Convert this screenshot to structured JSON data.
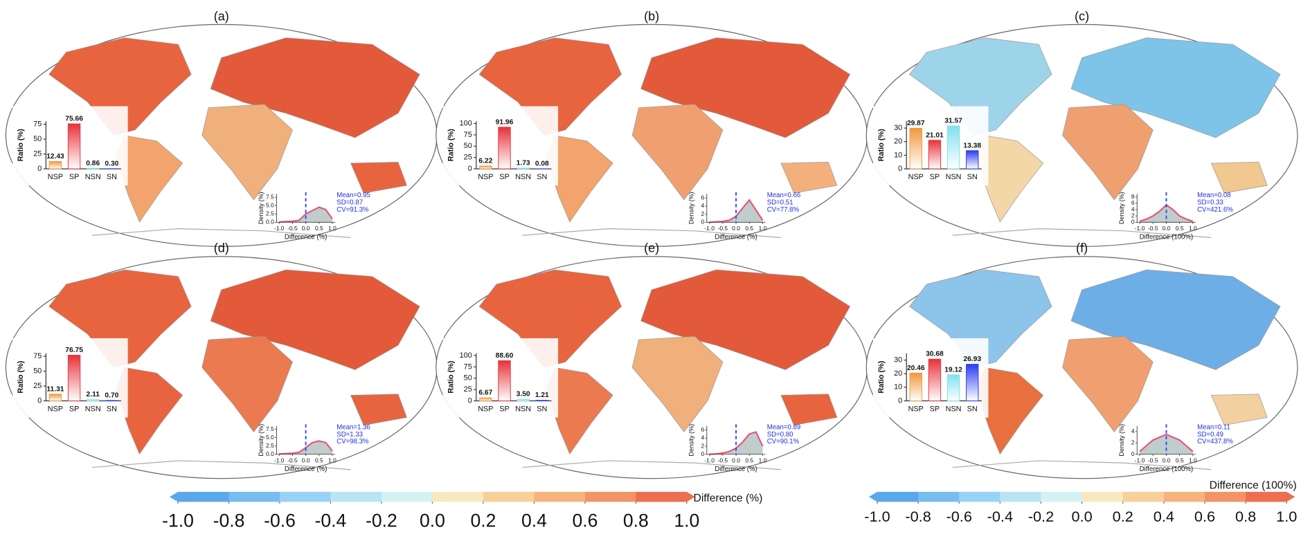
{
  "panels": [
    {
      "label": "(a)",
      "map_colors": [
        "#e8643f",
        "#f3a36c",
        "#e25a3a",
        "#f0b07c",
        "#e8643f"
      ],
      "bar": {
        "type": "bar",
        "ylabel": "Ratio (%)",
        "categories": [
          "NSP",
          "SP",
          "NSN",
          "SN"
        ],
        "values": [
          12.43,
          75.66,
          0.86,
          0.3
        ],
        "value_labels": [
          "12.43",
          "75.66",
          "0.86",
          "0.30"
        ],
        "colors": [
          "#f0993c",
          "#e8323a",
          "#7fe0f0",
          "#2a3cf0"
        ],
        "ylim": [
          0,
          80
        ],
        "yticks": [
          0,
          25,
          50,
          75
        ]
      },
      "density": {
        "type": "line",
        "xlabel": "Difference (%)",
        "ylabel": "Density (%)",
        "x": [
          -1,
          -0.75,
          -0.5,
          -0.25,
          0,
          0.25,
          0.5,
          0.75,
          1
        ],
        "values": [
          0.1,
          0.2,
          0.3,
          0.6,
          2.5,
          3.5,
          4.5,
          3.8,
          1.0
        ],
        "color": "#e8547a",
        "fill": "#b4c4c4",
        "vline": 0,
        "xlim": [
          -1.1,
          1.1
        ],
        "ylim": [
          0,
          8.5
        ],
        "xticks": [
          {
            "value": -1,
            "label": "-1.0"
          },
          -0.5,
          {
            "value": 0,
            "label": "0.0"
          },
          0.5,
          {
            "value": 1,
            "label": "1.0"
          }
        ],
        "yticks": [
          {
            "value": 0,
            "label": "0.0"
          },
          2.5,
          {
            "value": 5,
            "label": "5.0"
          },
          7.5
        ],
        "stats": [
          "Mean=0.95",
          "SD=0.87",
          "CV=91.3%"
        ]
      }
    },
    {
      "label": "(b)",
      "map_colors": [
        "#e8643f",
        "#f3a36c",
        "#e25a3a",
        "#f0a070",
        "#f3b07c"
      ],
      "bar": {
        "type": "bar",
        "ylabel": "Ratio (%)",
        "categories": [
          "NSP",
          "SP",
          "NSN",
          "SN"
        ],
        "values": [
          6.22,
          91.96,
          1.73,
          0.08
        ],
        "value_labels": [
          "6.22",
          "91.96",
          "1.73",
          "0.08"
        ],
        "colors": [
          "#f0993c",
          "#e8323a",
          "#7fe0f0",
          "#2a3cf0"
        ],
        "ylim": [
          0,
          105
        ],
        "yticks": [
          0,
          25,
          50,
          75,
          100
        ]
      },
      "density": {
        "type": "line",
        "xlabel": "Difference (%)",
        "ylabel": "Density (%)",
        "x": [
          -1,
          -0.75,
          -0.5,
          -0.25,
          0,
          0.25,
          0.5,
          0.75,
          1
        ],
        "values": [
          0,
          0.1,
          0.2,
          0.5,
          1.5,
          3.5,
          5.5,
          3.0,
          0.5
        ],
        "color": "#e8547a",
        "fill": "#b4c4c4",
        "vline": 0,
        "xlim": [
          -1.1,
          1.1
        ],
        "ylim": [
          0,
          7
        ],
        "xticks": [
          {
            "value": -1,
            "label": "-1.0"
          },
          -0.5,
          {
            "value": 0,
            "label": "0.0"
          },
          0.5,
          {
            "value": 1,
            "label": "1.0"
          }
        ],
        "yticks": [
          0,
          2,
          4,
          6
        ],
        "stats": [
          "Mean=0.66",
          "SD=0.51",
          "CV=77.8%"
        ]
      }
    },
    {
      "label": "(c)",
      "map_colors": [
        "#9ed4ea",
        "#f3d7a6",
        "#7ec4e8",
        "#eea070",
        "#f0c890"
      ],
      "bar": {
        "type": "bar",
        "ylabel": "Ratio (%)",
        "categories": [
          "NSP",
          "SP",
          "NSN",
          "SN"
        ],
        "values": [
          29.87,
          21.01,
          31.57,
          13.38
        ],
        "value_labels": [
          "29.87",
          "21.01",
          "31.57",
          "13.38"
        ],
        "colors": [
          "#f0993c",
          "#e8323a",
          "#7fe0f0",
          "#2a3cf0"
        ],
        "ylim": [
          0,
          35
        ],
        "yticks": [
          0,
          10,
          20,
          30
        ]
      },
      "density": {
        "type": "line",
        "xlabel": "Difference (100%)",
        "ylabel": "Density (%)",
        "x": [
          -1,
          -0.75,
          -0.5,
          -0.25,
          0,
          0.25,
          0.5,
          0.75,
          1
        ],
        "values": [
          0.3,
          1.0,
          2.0,
          3.5,
          5.5,
          4.0,
          2.0,
          1.0,
          0.3
        ],
        "color": "#e8547a",
        "fill": "#b4c4c4",
        "vline": 0,
        "xlim": [
          -1.1,
          1.1
        ],
        "ylim": [
          0,
          9
        ],
        "xticks": [
          {
            "value": -1,
            "label": "-1.0"
          },
          -0.5,
          {
            "value": 0,
            "label": "0.0"
          },
          0.5,
          {
            "value": 1,
            "label": "1.0"
          }
        ],
        "yticks": [
          0,
          2,
          4,
          6,
          8
        ],
        "stats": [
          "Mean=0.08",
          "SD=0.33",
          "CV=421.6%"
        ]
      }
    },
    {
      "label": "(d)",
      "map_colors": [
        "#e8643f",
        "#e8643f",
        "#e25a3a",
        "#ec7a50",
        "#e8643f"
      ],
      "bar": {
        "type": "bar",
        "ylabel": "Ratio (%)",
        "categories": [
          "NSP",
          "SP",
          "NSN",
          "SN"
        ],
        "values": [
          11.31,
          76.75,
          2.11,
          0.7
        ],
        "value_labels": [
          "11.31",
          "76.75",
          "2.11",
          "0.70"
        ],
        "colors": [
          "#f0993c",
          "#e8323a",
          "#7fe0f0",
          "#2a3cf0"
        ],
        "ylim": [
          0,
          80
        ],
        "yticks": [
          0,
          25,
          50,
          75
        ]
      },
      "density": {
        "type": "line",
        "xlabel": "Difference (%)",
        "ylabel": "Density (%)",
        "x": [
          -1,
          -0.75,
          -0.5,
          -0.25,
          0,
          0.25,
          0.5,
          0.75,
          1
        ],
        "values": [
          0.1,
          0.2,
          0.3,
          0.6,
          2.0,
          3.5,
          4.0,
          3.5,
          1.0
        ],
        "color": "#e8547a",
        "fill": "#b4c4c4",
        "vline": 0,
        "xlim": [
          -1.1,
          1.1
        ],
        "ylim": [
          0,
          8.5
        ],
        "xticks": [
          {
            "value": -1,
            "label": "-1.0"
          },
          -0.5,
          {
            "value": 0,
            "label": "0.0"
          },
          0.5,
          {
            "value": 1,
            "label": "1.0"
          }
        ],
        "yticks": [
          {
            "value": 0,
            "label": "0.0"
          },
          2.5,
          {
            "value": 5,
            "label": "5.0"
          },
          7.5
        ],
        "stats": [
          "Mean=1.36",
          "SD=1.33",
          "CV=98.3%"
        ]
      }
    },
    {
      "label": "(e)",
      "map_colors": [
        "#e8643f",
        "#ec7a50",
        "#e25a3a",
        "#f0b07c",
        "#e8643f"
      ],
      "bar": {
        "type": "bar",
        "ylabel": "Ratio (%)",
        "categories": [
          "NSP",
          "SP",
          "NSN",
          "SN"
        ],
        "values": [
          6.67,
          88.6,
          3.5,
          1.21
        ],
        "value_labels": [
          "6.67",
          "88.60",
          "3.50",
          "1.21"
        ],
        "colors": [
          "#f0993c",
          "#e8323a",
          "#7fe0f0",
          "#2a3cf0"
        ],
        "ylim": [
          0,
          105
        ],
        "yticks": [
          0,
          25,
          50,
          75,
          100
        ]
      },
      "density": {
        "type": "line",
        "xlabel": "Difference (%)",
        "ylabel": "Density (%)",
        "x": [
          -1,
          -0.75,
          -0.5,
          -0.25,
          0,
          0.25,
          0.5,
          0.75,
          1
        ],
        "values": [
          0,
          0.1,
          0.3,
          0.7,
          1.5,
          3.0,
          5.0,
          5.5,
          2.0
        ],
        "color": "#e8547a",
        "fill": "#b4c4c4",
        "vline": 0,
        "xlim": [
          -1.1,
          1.1
        ],
        "ylim": [
          0,
          7
        ],
        "xticks": [
          {
            "value": -1,
            "label": "-1.0"
          },
          -0.5,
          {
            "value": 0,
            "label": "0.0"
          },
          0.5,
          {
            "value": 1,
            "label": "1.0"
          }
        ],
        "yticks": [
          0,
          2,
          4,
          6
        ],
        "stats": [
          "Mean=0.89",
          "SD=0.80",
          "CV=90.1%"
        ]
      }
    },
    {
      "label": "(f)",
      "map_colors": [
        "#8cc4ea",
        "#e8703f",
        "#6eaee6",
        "#f0a070",
        "#f3d0a0"
      ],
      "bar": {
        "type": "bar",
        "ylabel": "Ratio (%)",
        "categories": [
          "NSP",
          "SP",
          "NSN",
          "SN"
        ],
        "values": [
          20.46,
          30.68,
          19.12,
          26.93
        ],
        "value_labels": [
          "20.46",
          "30.68",
          "19.12",
          "26.93"
        ],
        "colors": [
          "#f0993c",
          "#e8323a",
          "#7fe0f0",
          "#2a3cf0"
        ],
        "ylim": [
          0,
          35
        ],
        "yticks": [
          0,
          10,
          20,
          30
        ]
      },
      "density": {
        "type": "line",
        "xlabel": "Difference (100%)",
        "ylabel": "Density (%)",
        "x": [
          -1,
          -0.75,
          -0.5,
          -0.25,
          0,
          0.25,
          0.5,
          0.75,
          1
        ],
        "values": [
          0.5,
          1.5,
          2.5,
          3.0,
          3.5,
          3.0,
          2.5,
          1.5,
          0.5
        ],
        "color": "#e8547a",
        "fill": "#b4c4c4",
        "vline": 0,
        "xlim": [
          -1.1,
          1.1
        ],
        "ylim": [
          0,
          5
        ],
        "xticks": [
          {
            "value": -1,
            "label": "-1.0"
          },
          -0.5,
          {
            "value": 0,
            "label": "0.0"
          },
          0.5,
          {
            "value": 1,
            "label": "1.0"
          }
        ],
        "yticks": [
          0,
          2,
          4
        ],
        "stats": [
          "Mean=0.11",
          "SD=0.49",
          "CV=437.8%"
        ]
      }
    }
  ],
  "colorbars": [
    {
      "label": "Difference (%)",
      "colors": [
        "#5aa8ea",
        "#78bcf0",
        "#98d2f4",
        "#b8e4f6",
        "#d4f2f4",
        "#f7e8c0",
        "#f7d09a",
        "#f6b47c",
        "#f39466",
        "#ee6e52"
      ],
      "xlim": [
        -1.0,
        1.0
      ],
      "ticks": [
        {
          "value": -1,
          "label": "-1.0"
        },
        -0.8,
        -0.6,
        -0.4,
        -0.2,
        {
          "value": 0,
          "label": "0.0"
        },
        0.2,
        0.4,
        0.6,
        0.8,
        {
          "value": 1,
          "label": "1.0"
        }
      ]
    },
    {
      "label": "Difference (100%)",
      "colors": [
        "#5aa8ea",
        "#78bcf0",
        "#98d2f4",
        "#b8e4f6",
        "#d4f2f4",
        "#f7e8c0",
        "#f7d09a",
        "#f6b47c",
        "#f39466",
        "#ee6e52"
      ],
      "xlim": [
        -1.0,
        1.0
      ],
      "ticks": [
        {
          "value": -1,
          "label": "-1.0"
        },
        -0.8,
        -0.6,
        -0.4,
        -0.2,
        {
          "value": 0,
          "label": "0.0"
        },
        0.2,
        0.4,
        0.6,
        0.8,
        {
          "value": 1,
          "label": "1.0"
        }
      ]
    }
  ]
}
